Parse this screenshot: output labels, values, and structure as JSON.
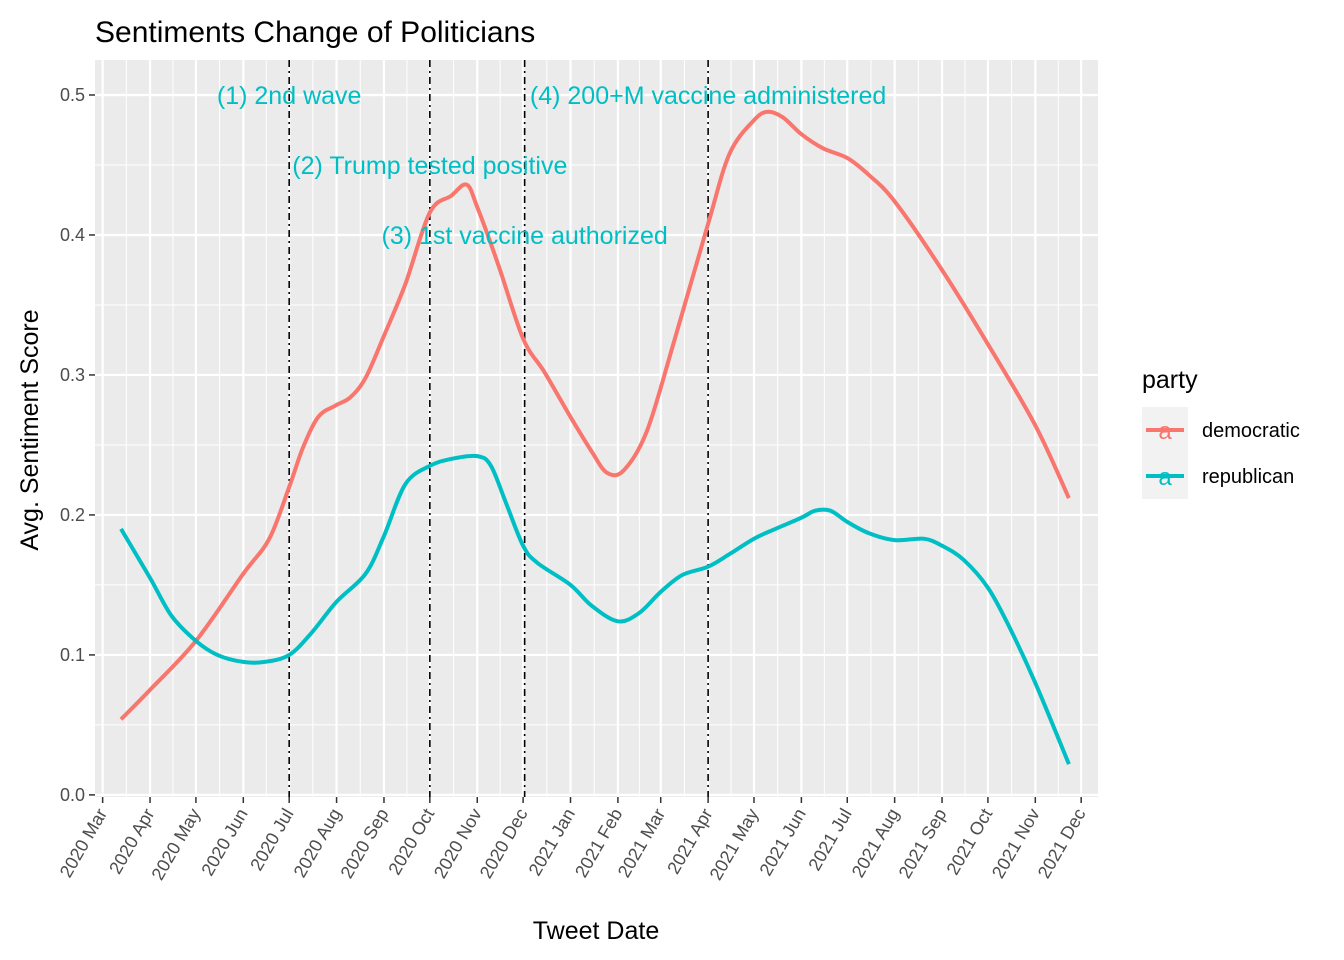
{
  "chart_data": {
    "type": "line",
    "title": "Sentiments Change of Politicians",
    "xlabel": "Tweet Date",
    "ylabel": "Avg. Sentiment Score",
    "x_ticks": [
      "2020 Mar",
      "2020 Apr",
      "2020 May",
      "2020 Jun",
      "2020 Jul",
      "2020 Aug",
      "2020 Sep",
      "2020 Oct",
      "2020 Nov",
      "2020 Dec",
      "2021 Jan",
      "2021 Feb",
      "2021 Mar",
      "2021 Apr",
      "2021 May",
      "2021 Jun",
      "2021 Jul",
      "2021 Aug",
      "2021 Sep",
      "2021 Oct",
      "2021 Nov",
      "2021 Dec"
    ],
    "y_ticks": [
      "0.0",
      "0.1",
      "0.2",
      "0.3",
      "0.4",
      "0.5"
    ],
    "xlim": [
      "2020-02-25",
      "2021-12-12"
    ],
    "ylim": [
      -0.0015,
      0.525
    ],
    "grid": true,
    "legend": {
      "title": "party",
      "position": "right"
    },
    "vlines": [
      "2020-07-01",
      "2020-10-01",
      "2020-12-02",
      "2021-04-01"
    ],
    "annotations": [
      {
        "text": "(1) 2nd wave",
        "x": "2020-07-01",
        "y": 0.5
      },
      {
        "text": "(2) Trump tested positive",
        "x": "2020-10-01",
        "y": 0.45
      },
      {
        "text": "(3) 1st vaccine authorized",
        "x": "2020-12-02",
        "y": 0.4
      },
      {
        "text": "(4) 200+M vaccine administered",
        "x": "2021-04-01",
        "y": 0.5
      }
    ],
    "series": [
      {
        "name": "democratic",
        "color": "#F8766D",
        "x": [
          "2020-03-13",
          "2020-04-01",
          "2020-05-01",
          "2020-06-01",
          "2020-06-18",
          "2020-07-01",
          "2020-07-10",
          "2020-07-20",
          "2020-07-31",
          "2020-08-10",
          "2020-08-20",
          "2020-09-01",
          "2020-09-15",
          "2020-10-01",
          "2020-10-15",
          "2020-10-25",
          "2020-11-01",
          "2020-11-15",
          "2020-12-01",
          "2020-12-15",
          "2021-01-01",
          "2021-01-15",
          "2021-01-25",
          "2021-02-05",
          "2021-02-20",
          "2021-03-10",
          "2021-04-01",
          "2021-04-15",
          "2021-05-01",
          "2021-05-10",
          "2021-05-20",
          "2021-06-01",
          "2021-06-15",
          "2021-07-01",
          "2021-07-15",
          "2021-08-01",
          "2021-09-01",
          "2021-10-01",
          "2021-11-01",
          "2021-11-23"
        ],
        "values": [
          0.054,
          0.075,
          0.11,
          0.158,
          0.183,
          0.22,
          0.248,
          0.27,
          0.278,
          0.284,
          0.298,
          0.328,
          0.365,
          0.416,
          0.428,
          0.436,
          0.42,
          0.378,
          0.326,
          0.302,
          0.27,
          0.245,
          0.23,
          0.232,
          0.26,
          0.325,
          0.408,
          0.458,
          0.482,
          0.488,
          0.484,
          0.472,
          0.462,
          0.455,
          0.443,
          0.424,
          0.375,
          0.322,
          0.264,
          0.212
        ]
      },
      {
        "name": "republican",
        "color": "#00BFC4",
        "x": [
          "2020-03-13",
          "2020-04-01",
          "2020-04-15",
          "2020-05-01",
          "2020-05-15",
          "2020-06-01",
          "2020-06-15",
          "2020-07-01",
          "2020-07-15",
          "2020-08-01",
          "2020-08-20",
          "2020-09-01",
          "2020-09-15",
          "2020-10-01",
          "2020-10-15",
          "2020-11-01",
          "2020-11-10",
          "2020-11-20",
          "2020-12-01",
          "2020-12-10",
          "2021-01-01",
          "2021-01-15",
          "2021-02-01",
          "2021-02-15",
          "2021-03-01",
          "2021-03-15",
          "2021-04-01",
          "2021-04-15",
          "2021-05-01",
          "2021-05-15",
          "2021-06-01",
          "2021-06-10",
          "2021-06-20",
          "2021-07-01",
          "2021-07-15",
          "2021-08-01",
          "2021-08-20",
          "2021-09-01",
          "2021-09-15",
          "2021-10-01",
          "2021-10-15",
          "2021-11-01",
          "2021-11-23"
        ],
        "values": [
          0.19,
          0.155,
          0.128,
          0.11,
          0.1,
          0.095,
          0.095,
          0.1,
          0.115,
          0.138,
          0.158,
          0.185,
          0.222,
          0.235,
          0.24,
          0.242,
          0.235,
          0.208,
          0.178,
          0.166,
          0.15,
          0.135,
          0.124,
          0.13,
          0.145,
          0.157,
          0.163,
          0.172,
          0.183,
          0.19,
          0.198,
          0.203,
          0.203,
          0.195,
          0.187,
          0.182,
          0.183,
          0.178,
          0.168,
          0.148,
          0.12,
          0.08,
          0.022
        ]
      }
    ]
  }
}
